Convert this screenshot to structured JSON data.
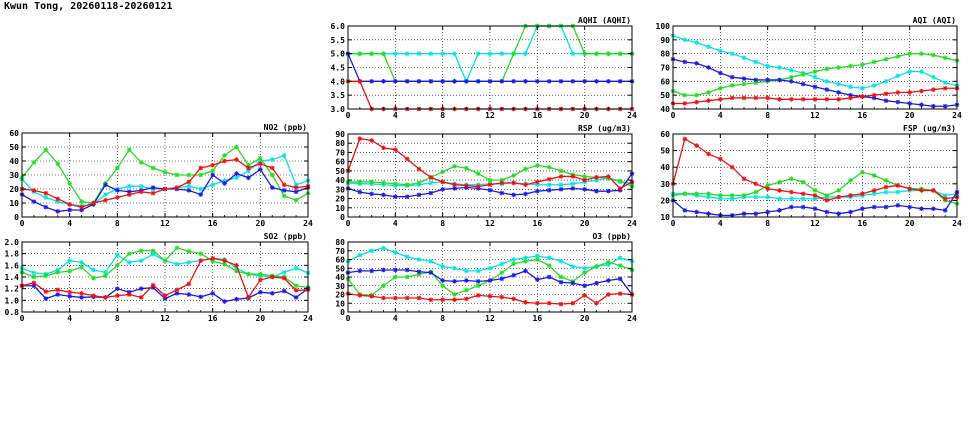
{
  "page": {
    "title": "Kwun Tong, 20260118-20260121"
  },
  "series_colors": {
    "s1": "#00e5e5",
    "s2": "#22dd22",
    "s3": "#1a1ae6",
    "s4": "#ee1111"
  },
  "chart_data": [
    {
      "id": "aqhi",
      "type": "line",
      "title": "AQHI (AQHI)",
      "xlim": [
        0,
        24
      ],
      "xticks": [
        0,
        4,
        8,
        12,
        16,
        20,
        24
      ],
      "ylim": [
        3.0,
        6.0
      ],
      "yticks": [
        "3.0",
        "3.5",
        "4.0",
        "4.5",
        "5.0",
        "5.5",
        "6.0"
      ],
      "series": [
        {
          "name": "s1",
          "values": [
            5,
            5,
            5,
            5,
            5,
            5,
            5,
            5,
            5,
            5,
            4,
            5,
            5,
            5,
            5,
            5,
            6,
            6,
            6,
            5,
            5,
            5,
            5,
            5,
            5
          ]
        },
        {
          "name": "s2",
          "values": [
            5,
            5,
            5,
            5,
            4,
            4,
            4,
            4,
            4,
            4,
            4,
            4,
            4,
            4,
            5,
            6,
            6,
            6,
            6,
            6,
            5,
            5,
            5,
            5,
            5
          ]
        },
        {
          "name": "s3",
          "values": [
            5,
            4,
            4,
            4,
            4,
            4,
            4,
            4,
            4,
            4,
            4,
            4,
            4,
            4,
            4,
            4,
            4,
            4,
            4,
            4,
            4,
            4,
            4,
            4,
            4
          ]
        },
        {
          "name": "s4",
          "values": [
            4,
            4,
            3,
            3,
            3,
            3,
            3,
            3,
            3,
            3,
            3,
            3,
            3,
            3,
            3,
            3,
            3,
            3,
            3,
            3,
            3,
            3,
            3,
            3,
            3
          ]
        }
      ]
    },
    {
      "id": "aqi",
      "type": "line",
      "title": "AQI (AQI)",
      "xlim": [
        0,
        24
      ],
      "xticks": [
        0,
        4,
        8,
        12,
        16,
        20,
        24
      ],
      "ylim": [
        40,
        100
      ],
      "yticks": [
        "40",
        "50",
        "60",
        "70",
        "80",
        "90",
        "100"
      ],
      "series": [
        {
          "name": "s1",
          "values": [
            93,
            90,
            88,
            85,
            82,
            80,
            77,
            74,
            71,
            70,
            68,
            66,
            63,
            60,
            58,
            56,
            55,
            57,
            60,
            64,
            67,
            67,
            63,
            59,
            57
          ]
        },
        {
          "name": "s2",
          "values": [
            53,
            50,
            50,
            52,
            55,
            57,
            58,
            59,
            60,
            61,
            63,
            65,
            67,
            69,
            70,
            71,
            72,
            74,
            76,
            78,
            80,
            80,
            79,
            77,
            75
          ]
        },
        {
          "name": "s3",
          "values": [
            76,
            74,
            73,
            70,
            66,
            63,
            62,
            61,
            61,
            61,
            60,
            58,
            56,
            54,
            52,
            50,
            49,
            48,
            46,
            45,
            44,
            43,
            42,
            42,
            43
          ]
        },
        {
          "name": "s4",
          "values": [
            44,
            44,
            45,
            46,
            47,
            48,
            48,
            48,
            48,
            47,
            47,
            47,
            47,
            47,
            47,
            48,
            49,
            50,
            51,
            52,
            52,
            53,
            54,
            55,
            55
          ]
        }
      ]
    },
    {
      "id": "no2",
      "type": "line",
      "title": "NO2 (ppb)",
      "xlim": [
        0,
        24
      ],
      "xticks": [
        0,
        4,
        8,
        12,
        16,
        20,
        24
      ],
      "ylim": [
        0,
        60
      ],
      "yticks": [
        "0",
        "10",
        "20",
        "30",
        "40",
        "50",
        "60"
      ],
      "series": [
        {
          "name": "s1",
          "values": [
            27,
            18,
            14,
            11,
            9,
            8,
            9,
            16,
            20,
            22,
            22,
            20,
            20,
            21,
            22,
            20,
            23,
            26,
            28,
            33,
            40,
            41,
            44,
            23,
            26
          ]
        },
        {
          "name": "s2",
          "values": [
            28,
            39,
            48,
            38,
            24,
            11,
            10,
            24,
            35,
            48,
            39,
            35,
            32,
            30,
            30,
            30,
            33,
            44,
            50,
            37,
            42,
            30,
            15,
            12,
            17
          ]
        },
        {
          "name": "s3",
          "values": [
            16,
            11,
            7,
            4,
            5,
            5,
            9,
            23,
            19,
            18,
            19,
            21,
            20,
            20,
            19,
            16,
            30,
            24,
            31,
            28,
            34,
            21,
            19,
            18,
            21
          ]
        },
        {
          "name": "s4",
          "values": [
            20,
            19,
            17,
            13,
            9,
            7,
            10,
            12,
            14,
            16,
            18,
            17,
            20,
            21,
            25,
            35,
            37,
            40,
            41,
            35,
            38,
            35,
            23,
            21,
            22
          ]
        }
      ]
    },
    {
      "id": "rsp",
      "type": "line",
      "title": "RSP (ug/m3)",
      "xlim": [
        0,
        24
      ],
      "xticks": [
        0,
        4,
        8,
        12,
        16,
        20,
        24
      ],
      "ylim": [
        0,
        90
      ],
      "yticks": [
        "0",
        "10",
        "20",
        "30",
        "40",
        "50",
        "60",
        "70",
        "80",
        "90"
      ],
      "series": [
        {
          "name": "s1",
          "values": [
            37,
            36,
            36,
            35,
            34,
            34,
            35,
            37,
            38,
            36,
            35,
            35,
            36,
            36,
            37,
            36,
            35,
            35,
            35,
            36,
            38,
            40,
            42,
            38,
            37
          ]
        },
        {
          "name": "s2",
          "values": [
            38,
            38,
            38,
            37,
            36,
            35,
            37,
            43,
            49,
            55,
            53,
            47,
            40,
            40,
            45,
            52,
            56,
            54,
            50,
            46,
            44,
            43,
            42,
            39,
            33
          ]
        },
        {
          "name": "s3",
          "values": [
            31,
            27,
            25,
            24,
            22,
            22,
            24,
            26,
            30,
            31,
            32,
            31,
            29,
            26,
            24,
            25,
            28,
            29,
            30,
            31,
            30,
            28,
            28,
            29,
            47
          ]
        },
        {
          "name": "s4",
          "values": [
            50,
            85,
            83,
            75,
            73,
            63,
            52,
            43,
            38,
            35,
            34,
            33,
            35,
            37,
            37,
            35,
            38,
            41,
            44,
            44,
            40,
            43,
            44,
            31,
            38
          ]
        }
      ]
    },
    {
      "id": "fsp",
      "type": "line",
      "title": "FSP (ug/m3)",
      "xlim": [
        0,
        24
      ],
      "xticks": [
        0,
        4,
        8,
        12,
        16,
        20,
        24
      ],
      "ylim": [
        10,
        60
      ],
      "yticks": [
        "10",
        "20",
        "30",
        "40",
        "50",
        "60"
      ],
      "series": [
        {
          "name": "s1",
          "values": [
            24,
            24,
            23,
            22,
            21,
            21,
            22,
            22,
            22,
            21,
            21,
            21,
            21,
            22,
            22,
            22,
            23,
            24,
            25,
            25,
            26,
            26,
            26,
            23,
            24
          ]
        },
        {
          "name": "s2",
          "values": [
            23,
            24,
            24,
            24,
            23,
            23,
            23,
            25,
            29,
            31,
            33,
            31,
            26,
            23,
            26,
            32,
            37,
            35,
            32,
            29,
            27,
            27,
            26,
            20,
            18
          ]
        },
        {
          "name": "s3",
          "values": [
            20,
            14,
            13,
            12,
            11,
            11,
            12,
            12,
            13,
            14,
            16,
            16,
            15,
            13,
            12,
            13,
            15,
            16,
            16,
            17,
            16,
            15,
            15,
            14,
            25
          ]
        },
        {
          "name": "s4",
          "values": [
            30,
            57,
            53,
            48,
            45,
            40,
            33,
            30,
            27,
            26,
            25,
            24,
            23,
            20,
            22,
            23,
            24,
            26,
            28,
            29,
            27,
            26,
            26,
            21,
            22
          ]
        }
      ]
    },
    {
      "id": "so2",
      "type": "line",
      "title": "SO2 (ppb)",
      "xlim": [
        0,
        24
      ],
      "xticks": [
        0,
        4,
        8,
        12,
        16,
        20,
        24
      ],
      "ylim": [
        0.8,
        2.0
      ],
      "yticks": [
        "0.8",
        "1.0",
        "1.2",
        "1.4",
        "1.6",
        "1.8",
        "2.0"
      ],
      "series": [
        {
          "name": "s1",
          "values": [
            1.55,
            1.47,
            1.45,
            1.52,
            1.68,
            1.65,
            1.52,
            1.48,
            1.78,
            1.65,
            1.68,
            1.79,
            1.68,
            1.62,
            1.65,
            1.68,
            1.72,
            1.7,
            1.55,
            1.45,
            1.42,
            1.4,
            1.48,
            1.55,
            1.47
          ]
        },
        {
          "name": "s2",
          "values": [
            1.48,
            1.4,
            1.42,
            1.48,
            1.5,
            1.57,
            1.38,
            1.42,
            1.6,
            1.8,
            1.85,
            1.85,
            1.68,
            1.9,
            1.84,
            1.8,
            1.67,
            1.62,
            1.5,
            1.45,
            1.45,
            1.42,
            1.4,
            1.25,
            1.22
          ]
        },
        {
          "name": "s3",
          "values": [
            1.25,
            1.25,
            1.03,
            1.1,
            1.07,
            1.05,
            1.06,
            1.05,
            1.2,
            1.14,
            1.2,
            1.22,
            1.03,
            1.12,
            1.1,
            1.06,
            1.12,
            0.98,
            1.02,
            1.04,
            1.14,
            1.12,
            1.16,
            1.05,
            1.2
          ]
        },
        {
          "name": "s4",
          "values": [
            1.25,
            1.3,
            1.15,
            1.18,
            1.14,
            1.12,
            1.08,
            1.05,
            1.08,
            1.1,
            1.05,
            1.26,
            1.08,
            1.18,
            1.28,
            1.68,
            1.72,
            1.68,
            1.6,
            1.05,
            1.35,
            1.4,
            1.38,
            1.17,
            1.18
          ]
        }
      ]
    },
    {
      "id": "o3",
      "type": "line",
      "title": "O3 (ppb)",
      "xlim": [
        0,
        24
      ],
      "xticks": [
        0,
        4,
        8,
        12,
        16,
        20,
        24
      ],
      "ylim": [
        0,
        80
      ],
      "yticks": [
        "0",
        "10",
        "20",
        "30",
        "40",
        "50",
        "60",
        "70",
        "80"
      ],
      "series": [
        {
          "name": "s1",
          "values": [
            58,
            65,
            70,
            73,
            68,
            63,
            60,
            58,
            52,
            50,
            47,
            47,
            50,
            55,
            60,
            62,
            64,
            62,
            58,
            52,
            50,
            52,
            54,
            62,
            58
          ]
        },
        {
          "name": "s2",
          "values": [
            38,
            20,
            19,
            30,
            40,
            40,
            43,
            46,
            30,
            20,
            25,
            30,
            36,
            45,
            55,
            58,
            60,
            53,
            40,
            35,
            45,
            52,
            57,
            53,
            48
          ]
        },
        {
          "name": "s3",
          "values": [
            45,
            47,
            47,
            48,
            48,
            48,
            46,
            45,
            36,
            35,
            36,
            35,
            36,
            38,
            42,
            47,
            37,
            40,
            34,
            33,
            30,
            33,
            36,
            38,
            20
          ]
        },
        {
          "name": "s4",
          "values": [
            21,
            19,
            18,
            16,
            16,
            16,
            16,
            14,
            14,
            14,
            15,
            19,
            18,
            17,
            15,
            11,
            10,
            10,
            9,
            10,
            19,
            10,
            20,
            21,
            20
          ]
        }
      ]
    }
  ]
}
